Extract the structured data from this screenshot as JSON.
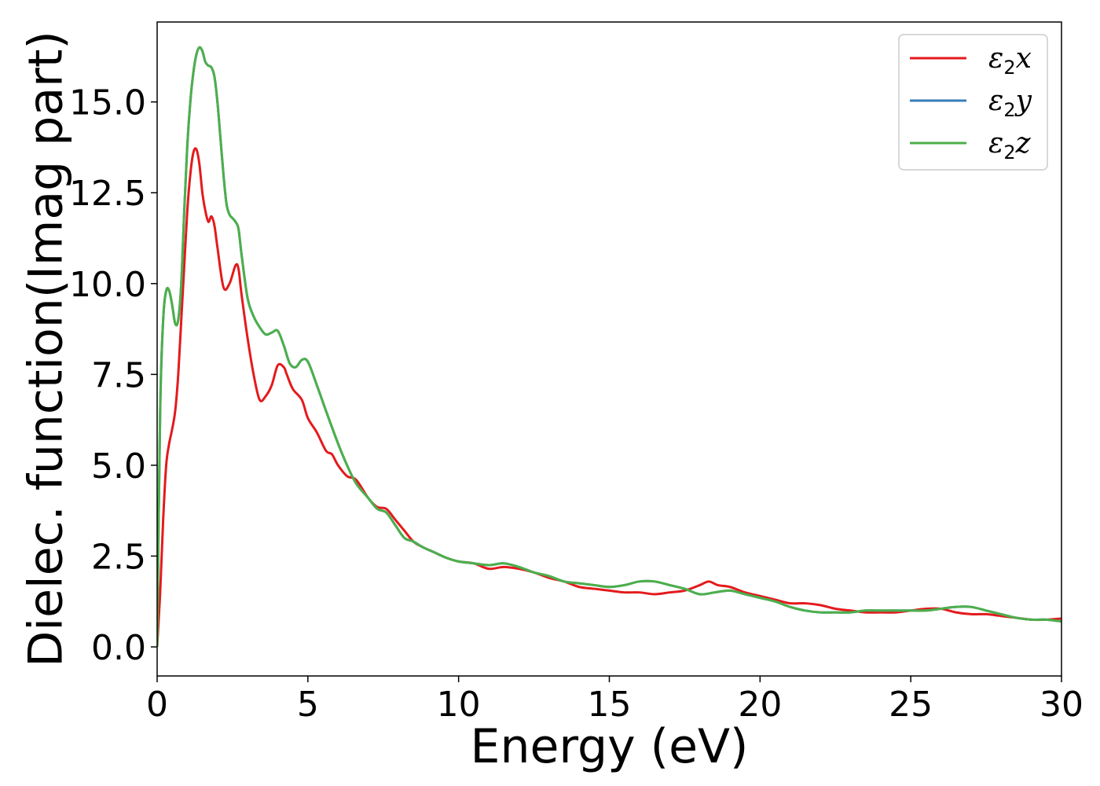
{
  "chart_data": {
    "type": "line",
    "title": "",
    "xlabel": "Energy (eV)",
    "ylabel": "Dielec. function(Imag part)",
    "xlim": [
      0,
      30
    ],
    "ylim": [
      -0.8,
      17.2
    ],
    "x_ticks": [
      0,
      5,
      10,
      15,
      20,
      25,
      30
    ],
    "x_tick_labels": [
      "0",
      "5",
      "10",
      "15",
      "20",
      "25",
      "30"
    ],
    "y_ticks": [
      0.0,
      2.5,
      5.0,
      7.5,
      10.0,
      12.5,
      15.0
    ],
    "y_tick_labels": [
      "0.0",
      "2.5",
      "5.0",
      "7.5",
      "10.0",
      "12.5",
      "15.0"
    ],
    "grid": false,
    "legend_position": "top-right",
    "series": [
      {
        "name": "ε2x",
        "label_base": "ε",
        "label_sub": "2",
        "label_tail": "x",
        "color": "#e41a1c",
        "x": [
          0,
          0.1,
          0.2,
          0.3,
          0.4,
          0.5,
          0.6,
          0.7,
          0.8,
          0.9,
          1.0,
          1.1,
          1.2,
          1.3,
          1.4,
          1.5,
          1.6,
          1.7,
          1.8,
          1.9,
          2.0,
          2.2,
          2.4,
          2.6,
          2.7,
          2.8,
          3.0,
          3.2,
          3.4,
          3.6,
          3.8,
          4.0,
          4.2,
          4.3,
          4.5,
          4.8,
          5.0,
          5.3,
          5.6,
          5.8,
          6.0,
          6.3,
          6.6,
          7.0,
          7.3,
          7.6,
          7.9,
          8.2,
          8.5,
          8.8,
          9.2,
          9.6,
          10.0,
          10.5,
          11.0,
          11.5,
          12.0,
          12.5,
          13.0,
          13.5,
          14.0,
          14.5,
          15.0,
          15.5,
          16.0,
          16.5,
          17.0,
          17.5,
          18.0,
          18.3,
          18.6,
          19.0,
          19.5,
          20.0,
          20.5,
          21.0,
          21.5,
          22.0,
          22.5,
          23.0,
          23.5,
          24.0,
          24.5,
          25.0,
          25.5,
          26.0,
          26.5,
          27.0,
          27.5,
          28.0,
          28.5,
          29.0,
          29.5,
          30.0
        ],
        "values": [
          0,
          1.5,
          3.5,
          5.0,
          5.6,
          6.0,
          6.5,
          7.5,
          9.0,
          10.5,
          12.0,
          13.0,
          13.6,
          13.7,
          13.3,
          12.5,
          12.0,
          11.7,
          11.85,
          11.6,
          11.0,
          9.9,
          10.0,
          10.5,
          10.4,
          9.7,
          8.5,
          7.5,
          6.8,
          6.9,
          7.2,
          7.75,
          7.7,
          7.5,
          7.1,
          6.8,
          6.3,
          5.9,
          5.4,
          5.3,
          5.0,
          4.7,
          4.6,
          4.1,
          3.85,
          3.8,
          3.5,
          3.2,
          2.9,
          2.75,
          2.6,
          2.45,
          2.35,
          2.3,
          2.15,
          2.2,
          2.15,
          2.05,
          1.9,
          1.8,
          1.65,
          1.6,
          1.55,
          1.5,
          1.5,
          1.45,
          1.5,
          1.55,
          1.7,
          1.8,
          1.7,
          1.65,
          1.5,
          1.4,
          1.3,
          1.2,
          1.2,
          1.15,
          1.05,
          1.0,
          0.95,
          0.95,
          0.95,
          1.0,
          1.05,
          1.05,
          0.95,
          0.9,
          0.9,
          0.85,
          0.8,
          0.75,
          0.75,
          0.78
        ]
      },
      {
        "name": "ε2y",
        "label_base": "ε",
        "label_sub": "2",
        "label_tail": "y",
        "color": "#377eb8",
        "x": [
          0,
          0.1,
          0.2,
          0.3,
          0.4,
          0.5,
          0.6,
          0.7,
          0.8,
          0.9,
          1.0,
          1.1,
          1.2,
          1.3,
          1.4,
          1.5,
          1.6,
          1.7,
          1.8,
          1.9,
          2.0,
          2.1,
          2.2,
          2.3,
          2.4,
          2.5,
          2.6,
          2.7,
          2.8,
          3.0,
          3.2,
          3.4,
          3.6,
          3.8,
          4.0,
          4.2,
          4.4,
          4.6,
          4.8,
          5.0,
          5.3,
          5.6,
          6.0,
          6.3,
          6.6,
          7.0,
          7.3,
          7.6,
          7.9,
          8.2,
          8.5,
          8.8,
          9.2,
          9.6,
          10.0,
          10.5,
          11.0,
          11.5,
          12.0,
          12.5,
          13.0,
          13.5,
          14.0,
          14.5,
          15.0,
          15.5,
          16.0,
          16.5,
          17.0,
          17.5,
          18.0,
          18.5,
          19.0,
          19.5,
          20.0,
          20.5,
          21.0,
          21.5,
          22.0,
          22.5,
          23.0,
          23.5,
          24.0,
          24.5,
          25.0,
          25.5,
          26.0,
          26.5,
          27.0,
          27.5,
          28.0,
          28.5,
          29.0,
          29.5,
          30.0
        ],
        "values": [
          0,
          6.5,
          9.0,
          9.8,
          9.8,
          9.4,
          8.9,
          9.0,
          10.0,
          12.0,
          13.8,
          15.0,
          15.8,
          16.3,
          16.5,
          16.4,
          16.1,
          16.0,
          15.95,
          15.7,
          15.0,
          14.0,
          13.0,
          12.2,
          11.9,
          11.8,
          11.7,
          11.5,
          10.8,
          9.6,
          9.1,
          8.8,
          8.6,
          8.65,
          8.7,
          8.3,
          7.8,
          7.7,
          7.9,
          7.85,
          7.2,
          6.5,
          5.6,
          5.0,
          4.5,
          4.1,
          3.8,
          3.7,
          3.35,
          3.0,
          2.9,
          2.75,
          2.6,
          2.45,
          2.35,
          2.3,
          2.25,
          2.3,
          2.2,
          2.05,
          1.95,
          1.8,
          1.75,
          1.7,
          1.65,
          1.7,
          1.8,
          1.8,
          1.7,
          1.6,
          1.45,
          1.5,
          1.55,
          1.45,
          1.35,
          1.25,
          1.1,
          1.0,
          0.95,
          0.95,
          0.95,
          1.0,
          1.0,
          1.0,
          1.0,
          1.0,
          1.05,
          1.1,
          1.1,
          1.0,
          0.9,
          0.8,
          0.75,
          0.75,
          0.7
        ]
      },
      {
        "name": "ε2z",
        "label_base": "ε",
        "label_sub": "2",
        "label_tail": "z",
        "color": "#4daf4a",
        "x": [
          0,
          0.1,
          0.2,
          0.3,
          0.4,
          0.5,
          0.6,
          0.7,
          0.8,
          0.9,
          1.0,
          1.1,
          1.2,
          1.3,
          1.4,
          1.5,
          1.6,
          1.7,
          1.8,
          1.9,
          2.0,
          2.1,
          2.2,
          2.3,
          2.4,
          2.5,
          2.6,
          2.7,
          2.8,
          3.0,
          3.2,
          3.4,
          3.6,
          3.8,
          4.0,
          4.2,
          4.4,
          4.6,
          4.8,
          5.0,
          5.3,
          5.6,
          6.0,
          6.3,
          6.6,
          7.0,
          7.3,
          7.6,
          7.9,
          8.2,
          8.5,
          8.8,
          9.2,
          9.6,
          10.0,
          10.5,
          11.0,
          11.5,
          12.0,
          12.5,
          13.0,
          13.5,
          14.0,
          14.5,
          15.0,
          15.5,
          16.0,
          16.5,
          17.0,
          17.5,
          18.0,
          18.5,
          19.0,
          19.5,
          20.0,
          20.5,
          21.0,
          21.5,
          22.0,
          22.5,
          23.0,
          23.5,
          24.0,
          24.5,
          25.0,
          25.5,
          26.0,
          26.5,
          27.0,
          27.5,
          28.0,
          28.5,
          29.0,
          29.5,
          30.0
        ],
        "values": [
          0,
          6.5,
          9.0,
          9.8,
          9.8,
          9.4,
          8.9,
          9.0,
          10.0,
          12.0,
          13.8,
          15.0,
          15.8,
          16.3,
          16.5,
          16.4,
          16.1,
          16.0,
          15.95,
          15.7,
          15.0,
          14.0,
          13.0,
          12.2,
          11.9,
          11.8,
          11.7,
          11.5,
          10.8,
          9.6,
          9.1,
          8.8,
          8.6,
          8.65,
          8.7,
          8.3,
          7.8,
          7.7,
          7.9,
          7.85,
          7.2,
          6.5,
          5.6,
          5.0,
          4.5,
          4.1,
          3.8,
          3.7,
          3.35,
          3.0,
          2.9,
          2.75,
          2.6,
          2.45,
          2.35,
          2.3,
          2.25,
          2.3,
          2.2,
          2.05,
          1.95,
          1.8,
          1.75,
          1.7,
          1.65,
          1.7,
          1.8,
          1.8,
          1.7,
          1.6,
          1.45,
          1.5,
          1.55,
          1.45,
          1.35,
          1.25,
          1.1,
          1.0,
          0.95,
          0.95,
          0.95,
          1.0,
          1.0,
          1.0,
          1.0,
          1.0,
          1.05,
          1.1,
          1.1,
          1.0,
          0.9,
          0.8,
          0.75,
          0.75,
          0.7
        ]
      }
    ]
  }
}
